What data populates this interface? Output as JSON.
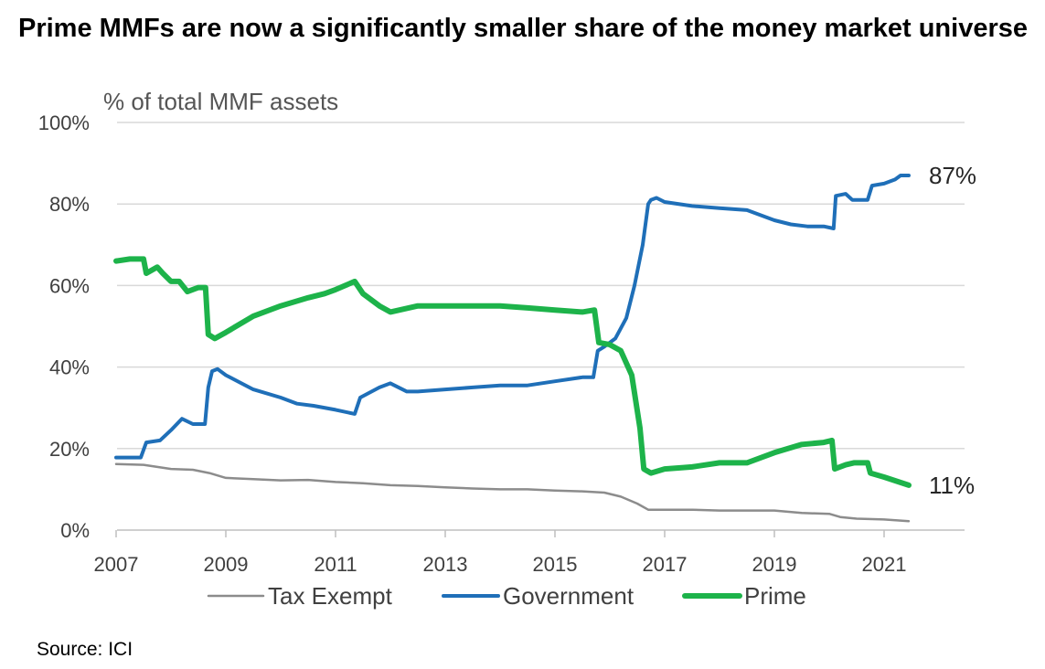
{
  "title": "Prime MMFs are now a significantly smaller share of the money market universe",
  "source": "Source: ICI",
  "chart_data": {
    "type": "line",
    "title": "Prime MMFs are now a significantly smaller share of the money market universe",
    "ylabel": "% of total MMF assets",
    "xlabel": "",
    "xlim": [
      2007,
      2022.5
    ],
    "ylim": [
      0,
      100
    ],
    "x_ticks": [
      2007,
      2009,
      2011,
      2013,
      2015,
      2017,
      2019,
      2021
    ],
    "x_tick_labels": [
      "2007",
      "2009",
      "2011",
      "2013",
      "2015",
      "2017",
      "2019",
      "2021"
    ],
    "y_ticks": [
      0,
      20,
      40,
      60,
      80,
      100
    ],
    "y_tick_labels": [
      "0%",
      "20%",
      "40%",
      "60%",
      "80%",
      "100%"
    ],
    "grid": "horizontal",
    "legend_position": "bottom",
    "colors": {
      "tax_exempt": "#8c8c8c",
      "government": "#1f6fb8",
      "prime": "#1db34a"
    },
    "series": [
      {
        "name": "Tax Exempt",
        "key": "tax_exempt",
        "x": [
          2007.0,
          2007.5,
          2008.0,
          2008.4,
          2008.7,
          2009.0,
          2009.5,
          2010.0,
          2010.5,
          2011.0,
          2011.5,
          2012.0,
          2012.5,
          2013.0,
          2013.5,
          2014.0,
          2014.5,
          2015.0,
          2015.5,
          2015.9,
          2016.2,
          2016.5,
          2016.7,
          2017.0,
          2017.5,
          2018.0,
          2018.5,
          2019.0,
          2019.5,
          2020.0,
          2020.2,
          2020.5,
          2021.0,
          2021.45
        ],
        "values": [
          16.2,
          16.0,
          15.0,
          14.8,
          14.0,
          12.8,
          12.5,
          12.2,
          12.3,
          11.8,
          11.5,
          11.0,
          10.8,
          10.5,
          10.2,
          10.0,
          10.0,
          9.7,
          9.5,
          9.2,
          8.2,
          6.5,
          5.0,
          5.0,
          5.0,
          4.8,
          4.8,
          4.8,
          4.2,
          4.0,
          3.2,
          2.8,
          2.6,
          2.2
        ]
      },
      {
        "name": "Government",
        "key": "government",
        "x": [
          2007.0,
          2007.2,
          2007.45,
          2007.55,
          2007.8,
          2008.0,
          2008.2,
          2008.4,
          2008.62,
          2008.68,
          2008.75,
          2008.85,
          2009.0,
          2009.5,
          2010.0,
          2010.3,
          2010.6,
          2011.0,
          2011.35,
          2011.45,
          2011.8,
          2012.0,
          2012.3,
          2012.5,
          2013.0,
          2013.5,
          2014.0,
          2014.5,
          2015.0,
          2015.5,
          2015.7,
          2015.78,
          2015.9,
          2016.1,
          2016.3,
          2016.45,
          2016.6,
          2016.7,
          2016.75,
          2016.85,
          2017.0,
          2017.5,
          2018.0,
          2018.5,
          2019.0,
          2019.3,
          2019.6,
          2019.9,
          2020.08,
          2020.12,
          2020.3,
          2020.42,
          2020.5,
          2020.7,
          2020.78,
          2021.0,
          2021.2,
          2021.3,
          2021.45
        ],
        "values": [
          17.8,
          17.8,
          17.8,
          21.5,
          22.0,
          24.5,
          27.3,
          26.0,
          26.0,
          35.0,
          39.0,
          39.5,
          38.0,
          34.5,
          32.5,
          31.0,
          30.5,
          29.5,
          28.5,
          32.5,
          35.0,
          36.0,
          34.0,
          34.0,
          34.5,
          35.0,
          35.5,
          35.5,
          36.5,
          37.5,
          37.5,
          44.0,
          45.0,
          47.0,
          52.0,
          60.0,
          70.0,
          80.0,
          81.0,
          81.5,
          80.5,
          79.5,
          79.0,
          78.5,
          76.0,
          75.0,
          74.5,
          74.5,
          74.0,
          82.0,
          82.5,
          81.0,
          81.0,
          81.0,
          84.5,
          85.0,
          86.0,
          87.0,
          87.0
        ]
      },
      {
        "name": "Prime",
        "key": "prime",
        "x": [
          2007.0,
          2007.25,
          2007.5,
          2007.55,
          2007.75,
          2007.85,
          2008.0,
          2008.15,
          2008.3,
          2008.5,
          2008.63,
          2008.68,
          2008.8,
          2009.0,
          2009.5,
          2010.0,
          2010.5,
          2010.8,
          2011.0,
          2011.35,
          2011.5,
          2011.8,
          2012.0,
          2012.5,
          2013.0,
          2013.5,
          2014.0,
          2014.5,
          2015.0,
          2015.5,
          2015.72,
          2015.8,
          2016.0,
          2016.2,
          2016.4,
          2016.55,
          2016.62,
          2016.75,
          2017.0,
          2017.5,
          2018.0,
          2018.5,
          2019.0,
          2019.5,
          2019.9,
          2020.05,
          2020.1,
          2020.3,
          2020.45,
          2020.7,
          2020.75,
          2021.0,
          2021.45
        ],
        "values": [
          66.0,
          66.5,
          66.5,
          63.0,
          64.5,
          63.0,
          61.0,
          61.0,
          58.5,
          59.5,
          59.5,
          48.0,
          47.0,
          48.5,
          52.5,
          55.0,
          57.0,
          58.0,
          59.0,
          61.0,
          58.0,
          55.0,
          53.5,
          55.0,
          55.0,
          55.0,
          55.0,
          54.5,
          54.0,
          53.5,
          54.0,
          46.0,
          45.5,
          44.0,
          38.0,
          25.0,
          15.0,
          14.0,
          15.0,
          15.5,
          16.5,
          16.5,
          19.0,
          21.0,
          21.5,
          22.0,
          15.0,
          16.0,
          16.5,
          16.5,
          14.0,
          13.0,
          11.0
        ]
      }
    ],
    "annotations": [
      {
        "text": "87%",
        "series": "government",
        "x": 2021.45,
        "y": 87
      },
      {
        "text": "11%",
        "series": "prime",
        "x": 2021.45,
        "y": 11
      }
    ]
  }
}
